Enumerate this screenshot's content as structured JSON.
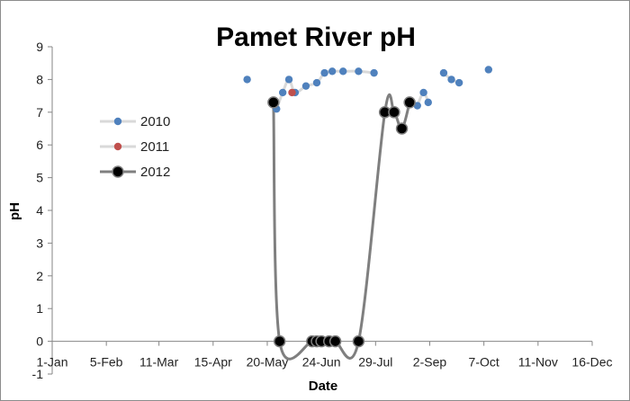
{
  "chart_data": {
    "type": "line",
    "title": "Pamet River pH",
    "xlabel": "Date",
    "ylabel": "pH",
    "xlim": [
      "1-Jan",
      "16-Dec"
    ],
    "ylim": [
      -1,
      9
    ],
    "x_tick_labels": [
      "1-Jan",
      "5-Feb",
      "11-Mar",
      "15-Apr",
      "20-May",
      "24-Jun",
      "29-Jul",
      "2-Sep",
      "7-Oct",
      "11-Nov",
      "16-Dec"
    ],
    "y_tick_labels": [
      "-1",
      "0",
      "1",
      "2",
      "3",
      "4",
      "5",
      "6",
      "7",
      "8",
      "9"
    ],
    "grid": false,
    "legend_position": "left-middle",
    "series": [
      {
        "name": "2010",
        "color": "#4f81bd",
        "line_color": "#d9d9d9",
        "marker": "small-circle",
        "segments": [
          [
            {
              "x": "7-May",
              "y": 8.0
            }
          ],
          [
            {
              "x": "26-May",
              "y": 7.1
            },
            {
              "x": "30-May",
              "y": 7.6
            },
            {
              "x": "3-Jun",
              "y": 8.0
            },
            {
              "x": "7-Jun",
              "y": 7.6
            },
            {
              "x": "14-Jun",
              "y": 7.8
            },
            {
              "x": "21-Jun",
              "y": 7.9
            },
            {
              "x": "26-Jun",
              "y": 8.2
            },
            {
              "x": "1-Jul",
              "y": 8.25
            },
            {
              "x": "8-Jul",
              "y": 8.25
            },
            {
              "x": "18-Jul",
              "y": 8.25
            },
            {
              "x": "28-Jul",
              "y": 8.2
            }
          ],
          [
            {
              "x": "25-Aug",
              "y": 7.2
            },
            {
              "x": "29-Aug",
              "y": 7.6
            },
            {
              "x": "1-Sep",
              "y": 7.3
            }
          ],
          [
            {
              "x": "11-Sep",
              "y": 8.2
            },
            {
              "x": "16-Sep",
              "y": 8.0
            },
            {
              "x": "21-Sep",
              "y": 7.9
            }
          ],
          [
            {
              "x": "10-Oct",
              "y": 8.3
            }
          ]
        ]
      },
      {
        "name": "2011",
        "color": "#c0504d",
        "line_color": "#d9d9d9",
        "marker": "small-circle",
        "segments": [
          [
            {
              "x": "5-Jun",
              "y": 7.6
            }
          ]
        ]
      },
      {
        "name": "2012",
        "color": "#000000",
        "line_color": "#7f7f7f",
        "marker": "large-circle",
        "segments": [
          [
            {
              "x": "24-May",
              "y": 7.3
            },
            {
              "x": "28-May",
              "y": 0.0
            },
            {
              "x": "18-Jun",
              "y": 0.0
            },
            {
              "x": "21-Jun",
              "y": 0.0
            },
            {
              "x": "24-Jun",
              "y": 0.0
            },
            {
              "x": "29-Jun",
              "y": 0.0
            },
            {
              "x": "3-Jul",
              "y": 0.0
            },
            {
              "x": "18-Jul",
              "y": 0.0
            },
            {
              "x": "4-Aug",
              "y": 7.0
            },
            {
              "x": "10-Aug",
              "y": 7.0
            },
            {
              "x": "15-Aug",
              "y": 6.5
            },
            {
              "x": "20-Aug",
              "y": 7.3
            }
          ]
        ]
      }
    ]
  }
}
